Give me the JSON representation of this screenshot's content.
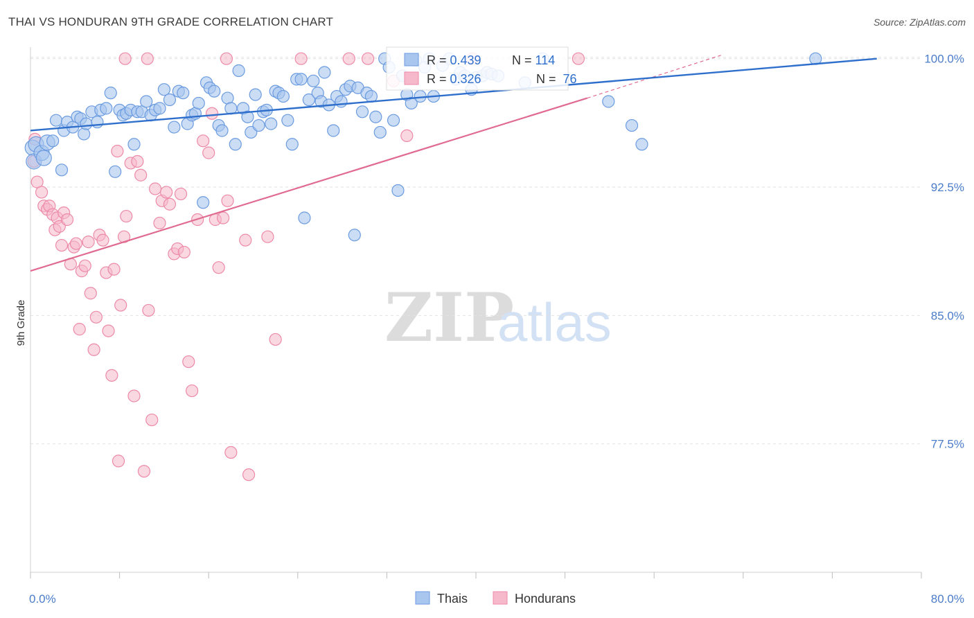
{
  "title": "THAI VS HONDURAN 9TH GRADE CORRELATION CHART",
  "source": "Source: ZipAtlas.com",
  "watermark": {
    "zip": "ZIP",
    "atlas": "atlas"
  },
  "colors": {
    "thai_fill": "#a9c6ee",
    "thai_stroke": "#6b9be0",
    "thai_line": "#2f6fcc",
    "hond_fill": "#f6b8cb",
    "hond_stroke": "#ec8aa8",
    "hond_line": "#e06a90",
    "tick_blue": "#4a7cc9",
    "grid": "#e2e2e2"
  },
  "stats_legend": {
    "thai": {
      "r_label": "R = ",
      "r_value": "0.439",
      "n_label": "N = ",
      "n_value": "114"
    },
    "hond": {
      "r_label": "R = ",
      "r_value": "0.326",
      "n_label": "N = ",
      "n_value": " 76"
    }
  },
  "bottom_legend": {
    "thai": "Thais",
    "hond": "Hondurans"
  },
  "chart_data": {
    "type": "scatter",
    "title": "THAI VS HONDURAN 9TH GRADE CORRELATION CHART",
    "xlabel": "",
    "ylabel": "9th Grade",
    "xlim": [
      0,
      80
    ],
    "ylim": [
      70,
      101
    ],
    "x_ticks": [
      0,
      8,
      16,
      24,
      32,
      40,
      48,
      56,
      64,
      72,
      80
    ],
    "x_tick_labels": {
      "0": "0.0%",
      "80": "80.0%"
    },
    "y_ticks": [
      77.5,
      85.0,
      92.5,
      100.0
    ],
    "y_tick_labels": [
      "77.5%",
      "85.0%",
      "92.5%",
      "100.0%"
    ],
    "grid": "horizontal dashed",
    "legend": "top-center",
    "series": [
      {
        "name": "Thais",
        "r": 0.439,
        "n": 114,
        "trend": {
          "x0": 0,
          "y0": 95.8,
          "x1": 76,
          "y1": 100.0
        },
        "points": [
          [
            0.2,
            94.8
          ],
          [
            0.3,
            94.0
          ],
          [
            0.5,
            95.0
          ],
          [
            1.0,
            94.5
          ],
          [
            1.2,
            94.2
          ],
          [
            1.5,
            95.1
          ],
          [
            2.0,
            95.2
          ],
          [
            2.3,
            96.4
          ],
          [
            2.8,
            93.5
          ],
          [
            3.0,
            95.8
          ],
          [
            3.3,
            96.3
          ],
          [
            3.8,
            96.0
          ],
          [
            4.2,
            96.6
          ],
          [
            4.5,
            96.5
          ],
          [
            4.8,
            95.6
          ],
          [
            5.0,
            96.2
          ],
          [
            5.5,
            96.9
          ],
          [
            6.0,
            96.3
          ],
          [
            6.3,
            97.0
          ],
          [
            6.8,
            97.1
          ],
          [
            7.2,
            98.0
          ],
          [
            7.6,
            93.4
          ],
          [
            8.0,
            97.0
          ],
          [
            8.3,
            96.7
          ],
          [
            8.6,
            96.8
          ],
          [
            9.0,
            97.0
          ],
          [
            9.3,
            95.0
          ],
          [
            9.6,
            96.9
          ],
          [
            10.0,
            96.9
          ],
          [
            10.4,
            97.5
          ],
          [
            10.8,
            96.7
          ],
          [
            11.2,
            97.0
          ],
          [
            11.6,
            97.1
          ],
          [
            12.0,
            98.2
          ],
          [
            12.5,
            97.6
          ],
          [
            12.9,
            96.0
          ],
          [
            13.3,
            98.1
          ],
          [
            13.7,
            98.0
          ],
          [
            14.1,
            96.2
          ],
          [
            14.5,
            96.7
          ],
          [
            14.8,
            96.8
          ],
          [
            15.1,
            97.4
          ],
          [
            15.5,
            91.6
          ],
          [
            15.8,
            98.6
          ],
          [
            16.1,
            98.3
          ],
          [
            16.5,
            98.1
          ],
          [
            16.9,
            96.1
          ],
          [
            17.2,
            95.8
          ],
          [
            17.7,
            97.7
          ],
          [
            18.0,
            97.1
          ],
          [
            18.4,
            95.0
          ],
          [
            18.7,
            99.3
          ],
          [
            19.1,
            97.1
          ],
          [
            19.5,
            96.6
          ],
          [
            19.8,
            95.7
          ],
          [
            20.2,
            97.9
          ],
          [
            20.5,
            96.1
          ],
          [
            20.9,
            96.9
          ],
          [
            21.2,
            97.0
          ],
          [
            21.6,
            96.2
          ],
          [
            22.0,
            98.1
          ],
          [
            22.3,
            98.0
          ],
          [
            22.7,
            97.8
          ],
          [
            23.1,
            96.4
          ],
          [
            23.5,
            95.0
          ],
          [
            23.9,
            98.8
          ],
          [
            24.3,
            98.8
          ],
          [
            24.6,
            90.7
          ],
          [
            25.0,
            97.6
          ],
          [
            25.4,
            98.7
          ],
          [
            25.8,
            98.0
          ],
          [
            26.1,
            97.5
          ],
          [
            26.4,
            99.2
          ],
          [
            26.8,
            97.3
          ],
          [
            27.2,
            95.8
          ],
          [
            27.5,
            97.8
          ],
          [
            27.9,
            97.5
          ],
          [
            28.3,
            98.2
          ],
          [
            28.7,
            98.4
          ],
          [
            29.1,
            89.7
          ],
          [
            29.4,
            98.3
          ],
          [
            29.8,
            96.9
          ],
          [
            30.2,
            98.0
          ],
          [
            30.6,
            97.8
          ],
          [
            31.0,
            96.6
          ],
          [
            31.4,
            95.7
          ],
          [
            31.8,
            100.0
          ],
          [
            32.2,
            99.5
          ],
          [
            32.6,
            96.4
          ],
          [
            33.0,
            92.3
          ],
          [
            33.4,
            99.0
          ],
          [
            33.8,
            97.9
          ],
          [
            34.2,
            97.4
          ],
          [
            34.6,
            99.9
          ],
          [
            35.0,
            97.8
          ],
          [
            35.4,
            99.5
          ],
          [
            35.8,
            100.0
          ],
          [
            36.2,
            97.8
          ],
          [
            37.0,
            99.6
          ],
          [
            37.6,
            100.0
          ],
          [
            38.2,
            98.8
          ],
          [
            38.6,
            99.2
          ],
          [
            39.0,
            99.0
          ],
          [
            39.6,
            98.2
          ],
          [
            40.0,
            98.9
          ],
          [
            40.6,
            99.0
          ],
          [
            41.0,
            99.2
          ],
          [
            41.4,
            99.1
          ],
          [
            42.0,
            99.0
          ],
          [
            44.4,
            98.6
          ],
          [
            46.0,
            100.0
          ],
          [
            51.9,
            97.5
          ],
          [
            54.0,
            96.1
          ],
          [
            54.9,
            95.0
          ],
          [
            70.5,
            100.0
          ]
        ]
      },
      {
        "name": "Hondurans",
        "r": 0.326,
        "n": 76,
        "trend": {
          "x0": 0,
          "y0": 87.6,
          "x1": 50,
          "y1": 97.7,
          "dash_x1": 62,
          "dash_y1": 100.2
        },
        "points": [
          [
            0.3,
            94.0
          ],
          [
            0.4,
            95.3
          ],
          [
            0.6,
            92.8
          ],
          [
            1.0,
            92.2
          ],
          [
            1.2,
            91.4
          ],
          [
            1.5,
            91.2
          ],
          [
            1.7,
            91.4
          ],
          [
            2.0,
            90.9
          ],
          [
            2.2,
            90.0
          ],
          [
            2.4,
            90.7
          ],
          [
            2.6,
            90.2
          ],
          [
            2.8,
            89.1
          ],
          [
            3.0,
            91.0
          ],
          [
            3.3,
            90.6
          ],
          [
            3.6,
            88.0
          ],
          [
            3.9,
            89.0
          ],
          [
            4.1,
            89.2
          ],
          [
            4.4,
            84.2
          ],
          [
            4.6,
            87.6
          ],
          [
            4.9,
            87.9
          ],
          [
            5.2,
            89.3
          ],
          [
            5.4,
            86.3
          ],
          [
            5.7,
            83.0
          ],
          [
            5.9,
            84.9
          ],
          [
            6.2,
            89.7
          ],
          [
            6.5,
            89.4
          ],
          [
            6.8,
            87.5
          ],
          [
            7.0,
            84.1
          ],
          [
            7.3,
            81.5
          ],
          [
            7.5,
            87.7
          ],
          [
            7.8,
            94.6
          ],
          [
            7.9,
            76.5
          ],
          [
            8.1,
            85.6
          ],
          [
            8.4,
            89.6
          ],
          [
            8.6,
            90.8
          ],
          [
            9.0,
            93.9
          ],
          [
            9.3,
            80.3
          ],
          [
            9.6,
            94.0
          ],
          [
            9.9,
            93.2
          ],
          [
            10.2,
            75.9
          ],
          [
            10.6,
            85.3
          ],
          [
            10.9,
            78.9
          ],
          [
            11.2,
            92.4
          ],
          [
            11.6,
            90.4
          ],
          [
            11.8,
            91.7
          ],
          [
            12.2,
            92.2
          ],
          [
            12.5,
            91.5
          ],
          [
            12.9,
            88.6
          ],
          [
            13.2,
            88.9
          ],
          [
            13.5,
            92.1
          ],
          [
            13.8,
            88.7
          ],
          [
            14.2,
            82.3
          ],
          [
            14.5,
            80.6
          ],
          [
            15.0,
            90.6
          ],
          [
            15.5,
            95.2
          ],
          [
            16.0,
            94.5
          ],
          [
            16.3,
            96.8
          ],
          [
            16.6,
            90.6
          ],
          [
            16.9,
            87.8
          ],
          [
            17.3,
            90.7
          ],
          [
            17.7,
            91.7
          ],
          [
            18.0,
            77.0
          ],
          [
            19.3,
            89.4
          ],
          [
            19.6,
            75.7
          ],
          [
            21.3,
            89.6
          ],
          [
            22.0,
            83.6
          ],
          [
            8.5,
            100.0
          ],
          [
            10.5,
            100.0
          ],
          [
            17.6,
            100.0
          ],
          [
            24.3,
            100.0
          ],
          [
            28.6,
            100.0
          ],
          [
            30.3,
            100.0
          ],
          [
            32.6,
            98.7
          ],
          [
            33.8,
            95.5
          ],
          [
            39.7,
            100.0
          ],
          [
            49.2,
            100.0
          ]
        ]
      }
    ]
  }
}
